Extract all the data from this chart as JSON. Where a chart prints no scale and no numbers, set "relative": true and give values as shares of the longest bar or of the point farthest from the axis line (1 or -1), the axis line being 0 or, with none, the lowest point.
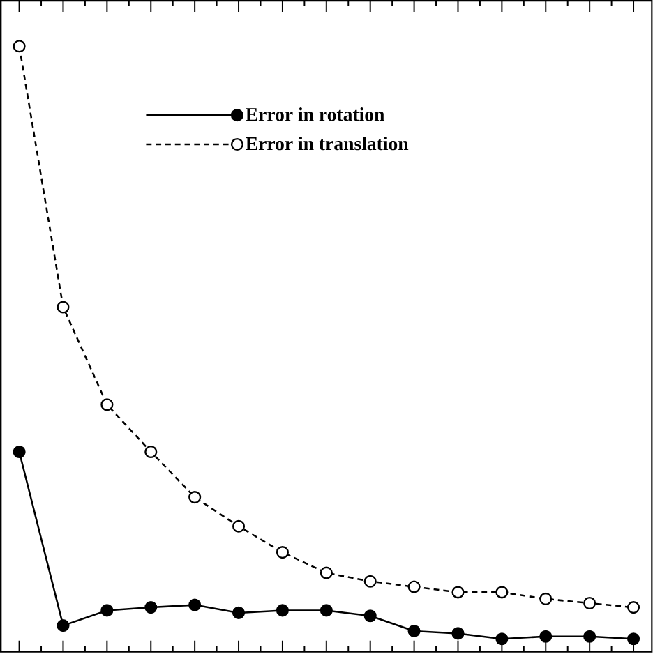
{
  "chart_data": {
    "type": "line",
    "relative": true,
    "categories": [
      null,
      null,
      null,
      null,
      null,
      null,
      null,
      null,
      null,
      null,
      null,
      null,
      null,
      null,
      null
    ],
    "series": [
      {
        "name": "Error in rotation",
        "color": "#000000",
        "line_style": "solid",
        "values": [
          0.33,
          0.043,
          0.068,
          0.073,
          0.077,
          0.064,
          0.068,
          0.068,
          0.059,
          0.034,
          0.03,
          0.021,
          0.025,
          0.025,
          0.021
        ]
      },
      {
        "name": "Error in translation",
        "color": "#000000",
        "line_style": "dashed",
        "values": [
          1,
          0.569,
          0.408,
          0.33,
          0.255,
          0.207,
          0.164,
          0.13,
          0.116,
          0.107,
          0.098,
          0.098,
          0.087,
          0.08,
          0.073
        ]
      }
    ],
    "marker": "circle",
    "grid": false,
    "legend": "top"
  }
}
